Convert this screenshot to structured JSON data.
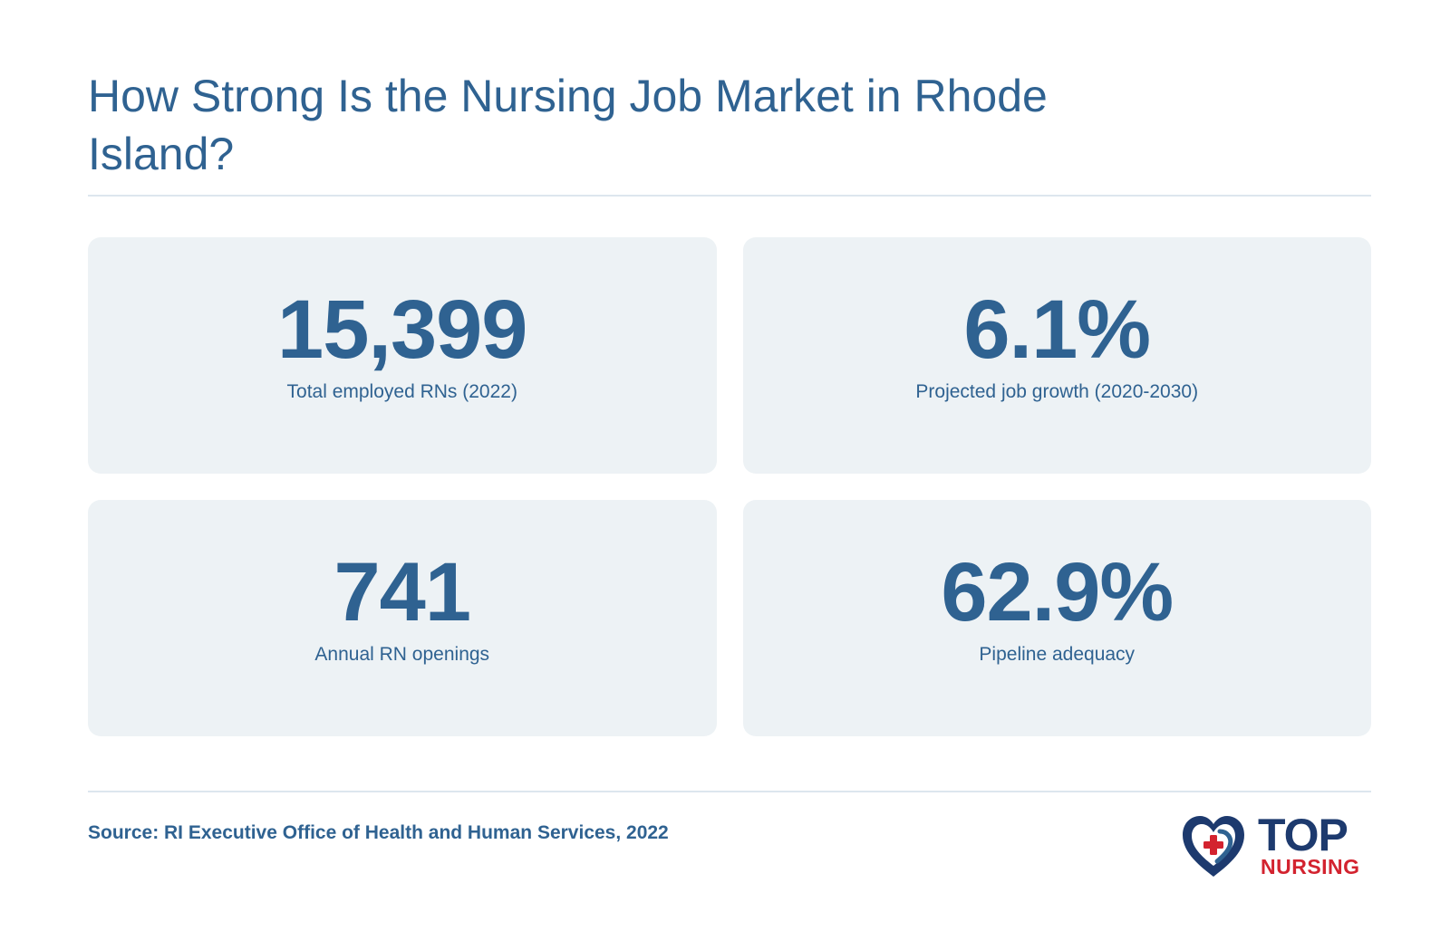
{
  "title": "How Strong Is the Nursing Job Market in Rhode Island?",
  "stats": [
    {
      "value": "15,399",
      "label": "Total employed RNs (2022)"
    },
    {
      "value": "6.1%",
      "label": "Projected job growth (2020-2030)"
    },
    {
      "value": "741",
      "label": "Annual RN openings"
    },
    {
      "value": "62.9%",
      "label": "Pipeline adequacy"
    }
  ],
  "source": "Source: RI Executive Office of Health and Human Services, 2022",
  "logo": {
    "word_top": "TOP",
    "word_bottom": "NURSING",
    "icon": "heart-cross-icon",
    "colors": {
      "navy": "#1d3a6e",
      "blue": "#2f6291",
      "red": "#d3232f"
    }
  },
  "colors": {
    "text": "#2f6291",
    "card_background": "#edf2f5",
    "divider": "#dde6ee"
  }
}
